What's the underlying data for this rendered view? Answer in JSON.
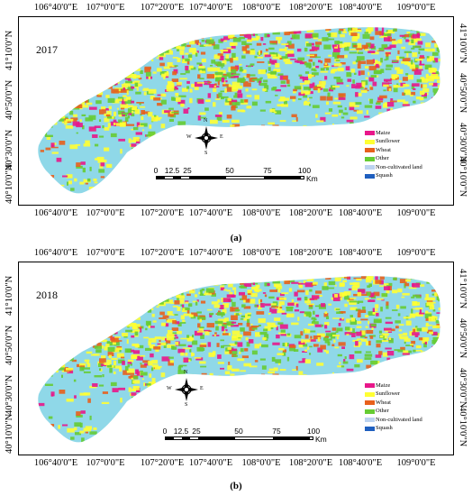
{
  "panels": [
    {
      "year": "2017",
      "caption": "(a)",
      "top_ticks": [
        "106°40'0\"E",
        "107°0'0\"E",
        "107°20'0\"E",
        "107°40'0\"E",
        "108°0'0\"E",
        "108°20'0\"E",
        "108°40'0\"E",
        "109°0'0\"E"
      ],
      "bottom_ticks": [
        "106°40'0\"E",
        "107°0'0\"E",
        "107°20'0\"E",
        "107°40'0\"E",
        "108°0'0\"E",
        "108°20'0\"E",
        "108°40'0\"E",
        "109°0'0\"E"
      ],
      "left_ticks": [
        "41°10'0\"N",
        "40°50'0\"N",
        "40°30'0\"N",
        "40°10'0\"N"
      ],
      "right_ticks": [
        "41°10'0\"N",
        "40°50'0\"N",
        "40°30'0\"N",
        "40°10'0\"N"
      ]
    },
    {
      "year": "2018",
      "caption": "(b)",
      "top_ticks": [
        "106°40'0\"E",
        "107°0'0\"E",
        "107°20'0\"E",
        "107°40'0\"E",
        "108°0'0\"E",
        "108°20'0\"E",
        "108°40'0\"E",
        "109°0'0\"E"
      ],
      "bottom_ticks": [
        "106°40'0\"E",
        "107°0'0\"E",
        "107°20'0\"E",
        "107°40'0\"E",
        "108°0'0\"E",
        "108°20'0\"E",
        "108°40'0\"E",
        "109°0'0\"E"
      ],
      "left_ticks": [
        "41°10'0\"N",
        "40°50'0\"N",
        "40°30'0\"N",
        "40°10'0\"N"
      ],
      "right_ticks": [
        "41°10'0\"N",
        "40°50'0\"N",
        "40°30'0\"N",
        "40°10'0\"N"
      ]
    }
  ],
  "legend": [
    {
      "label": "Maize",
      "color": "#e8178a"
    },
    {
      "label": "Sunflower",
      "color": "#ffff33"
    },
    {
      "label": "Wheat",
      "color": "#e8601c"
    },
    {
      "label": "Other",
      "color": "#66cc33"
    },
    {
      "label": "Non-cultivated land",
      "color": "#bcd3f0"
    },
    {
      "label": "Squash",
      "color": "#1f5fbf"
    }
  ],
  "compass": {
    "n": "N",
    "s": "S",
    "e": "E",
    "w": "W"
  },
  "scalebar": {
    "labels": [
      "0",
      "12.5",
      "25",
      "50",
      "75",
      "100"
    ],
    "unit": "Km"
  },
  "colors": {
    "water": "#8fd8e8",
    "maize": "#e8178a",
    "sunflower": "#ffff33",
    "wheat": "#e8601c",
    "other": "#66cc33"
  }
}
